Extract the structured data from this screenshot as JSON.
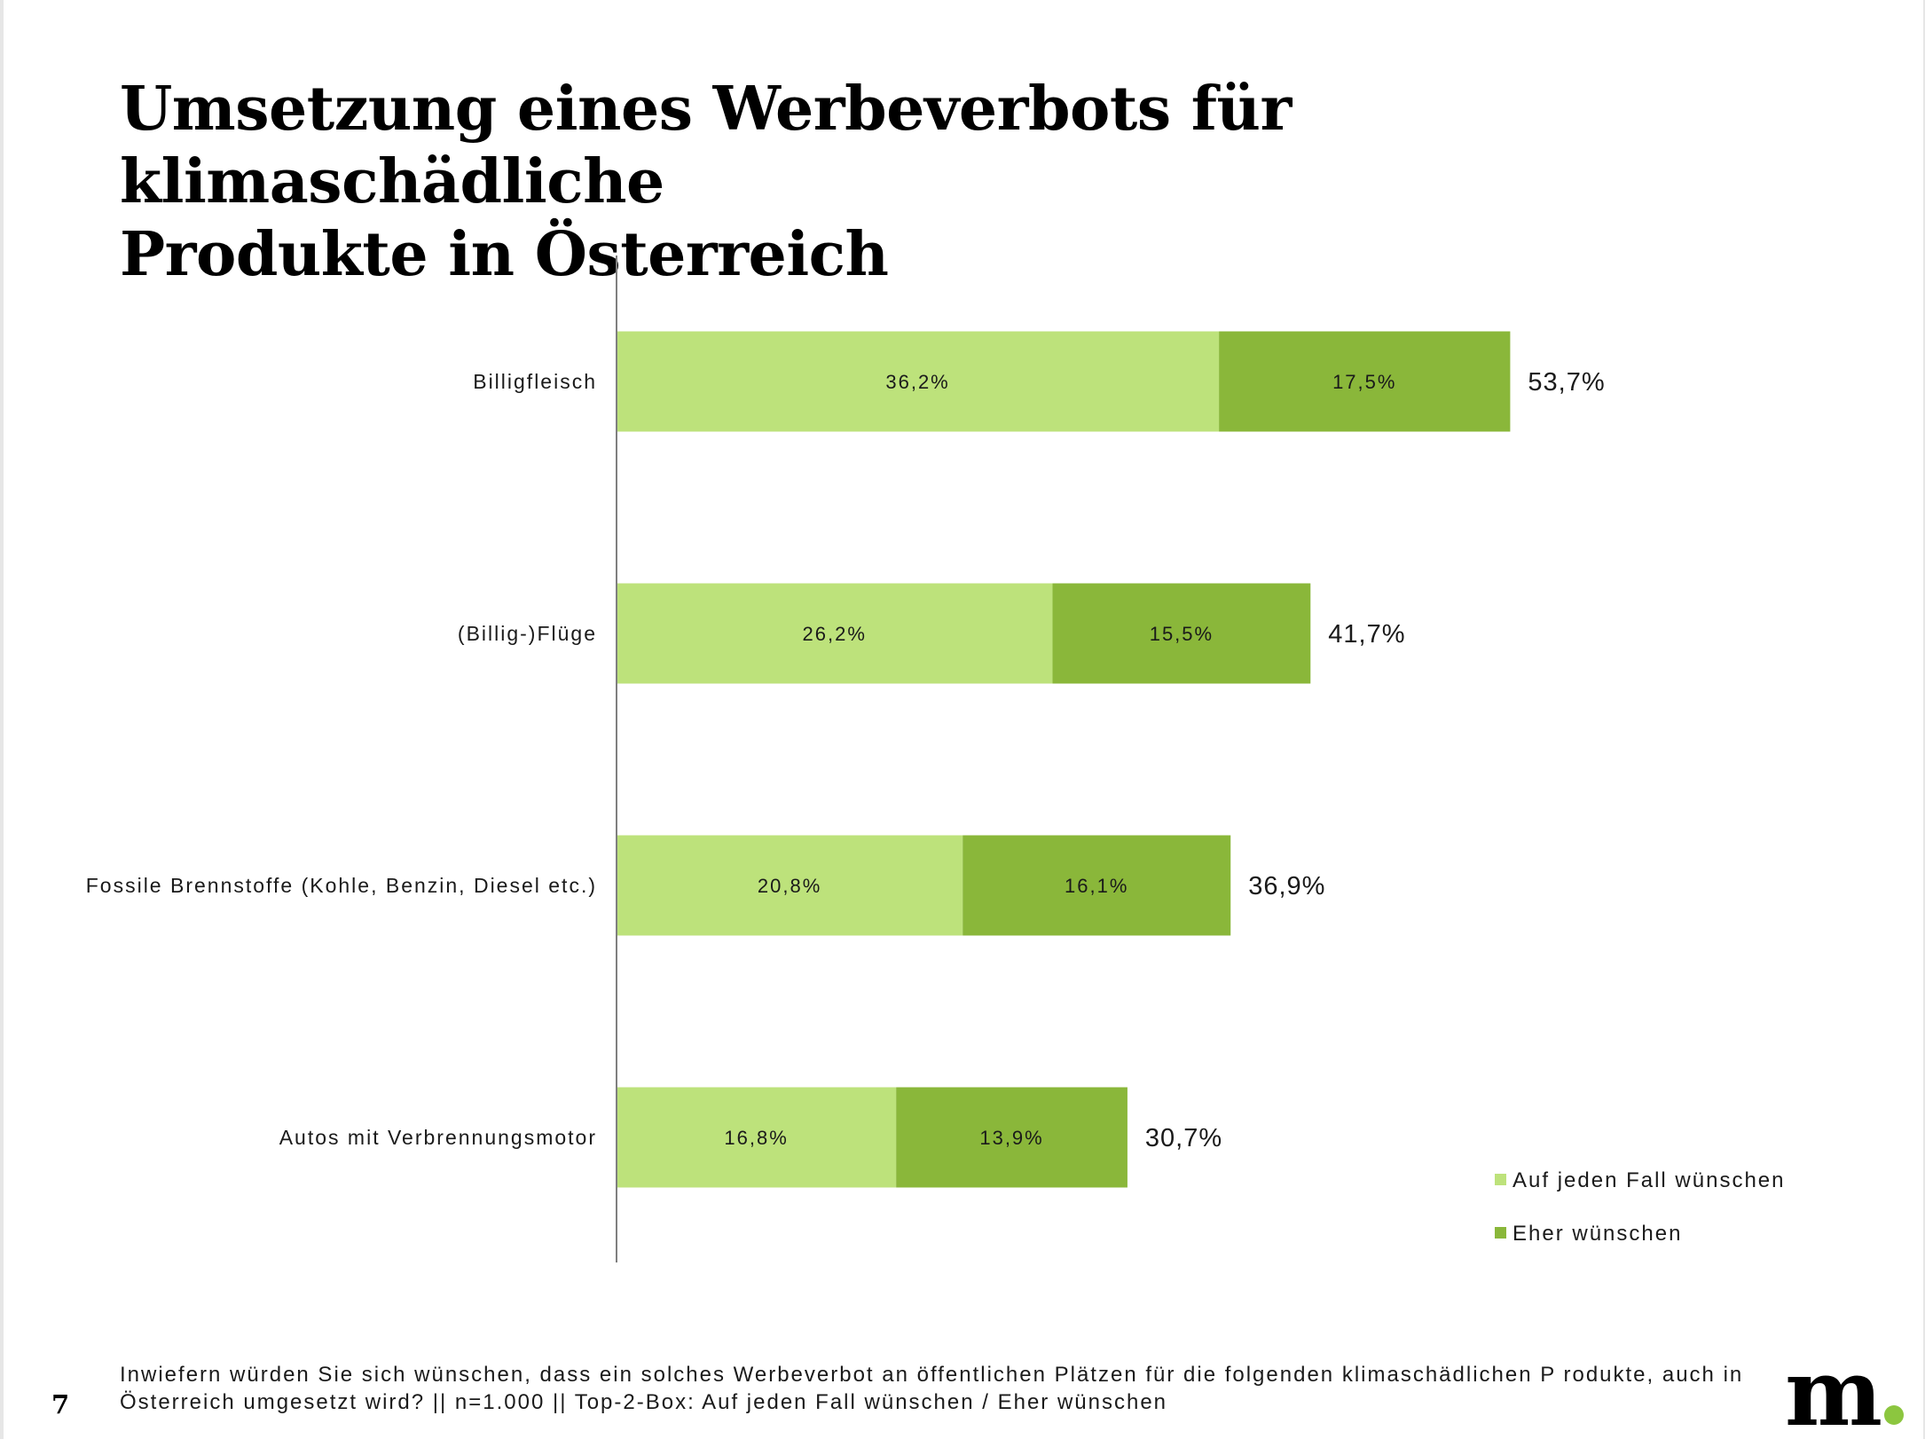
{
  "slide": {
    "title_line1": "Umsetzung eines Werbeverbots für klimaschädliche",
    "title_line2": "Produkte in Österreich",
    "page_number": "7",
    "footnote_line1": "Inwiefern würden Sie sich wünschen, dass ein solches Werbeverbot an öffentlichen Plätzen für die folgenden klimaschädlichen P rodukte, auch in",
    "footnote_line2": "Österreich umgesetzt wird? || n=1.000 || Top-2-Box: Auf jeden Fall wünschen / Eher wünschen",
    "logo_text": "m"
  },
  "chart_data": {
    "type": "bar",
    "orientation": "horizontal",
    "stacked": true,
    "categories": [
      "Billigfleisch",
      "(Billig-)Flüge",
      "Fossile Brennstoffe (Kohle, Benzin, Diesel etc.)",
      "Autos mit Verbrennungsmotor"
    ],
    "series": [
      {
        "name": "Auf jeden Fall wünschen",
        "color": "#bde27b",
        "values": [
          36.2,
          26.2,
          20.8,
          16.8
        ],
        "labels": [
          "36,2%",
          "26,2%",
          "20,8%",
          "16,8%"
        ]
      },
      {
        "name": "Eher wünschen",
        "color": "#8ab73a",
        "values": [
          17.5,
          15.5,
          16.1,
          13.9
        ],
        "labels": [
          "17,5%",
          "15,5%",
          "16,1%",
          "13,9%"
        ]
      }
    ],
    "totals": [
      53.7,
      41.7,
      36.9,
      30.7
    ],
    "total_labels": [
      "53,7%",
      "41,7%",
      "36,9%",
      "30,7%"
    ],
    "axis_color": "#7f7f7f",
    "grid": false,
    "legend_position": "bottom-right"
  }
}
